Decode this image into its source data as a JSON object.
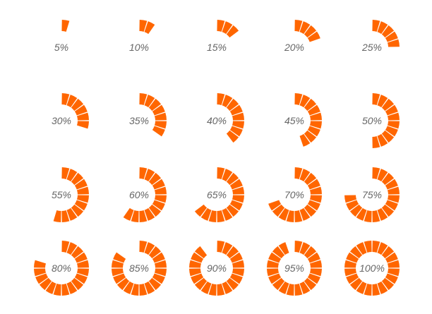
{
  "colors": {
    "accent": "#ff6600",
    "label": "#666666"
  },
  "segments_total": 20,
  "indicators": [
    {
      "percent": 5,
      "label": "5%"
    },
    {
      "percent": 10,
      "label": "10%"
    },
    {
      "percent": 15,
      "label": "15%"
    },
    {
      "percent": 20,
      "label": "20%"
    },
    {
      "percent": 25,
      "label": "25%"
    },
    {
      "percent": 30,
      "label": "30%"
    },
    {
      "percent": 35,
      "label": "35%"
    },
    {
      "percent": 40,
      "label": "40%"
    },
    {
      "percent": 45,
      "label": "45%"
    },
    {
      "percent": 50,
      "label": "50%"
    },
    {
      "percent": 55,
      "label": "55%"
    },
    {
      "percent": 60,
      "label": "60%"
    },
    {
      "percent": 65,
      "label": "65%"
    },
    {
      "percent": 70,
      "label": "70%"
    },
    {
      "percent": 75,
      "label": "75%"
    },
    {
      "percent": 80,
      "label": "80%"
    },
    {
      "percent": 85,
      "label": "85%"
    },
    {
      "percent": 90,
      "label": "90%"
    },
    {
      "percent": 95,
      "label": "95%"
    },
    {
      "percent": 100,
      "label": "100%"
    }
  ]
}
